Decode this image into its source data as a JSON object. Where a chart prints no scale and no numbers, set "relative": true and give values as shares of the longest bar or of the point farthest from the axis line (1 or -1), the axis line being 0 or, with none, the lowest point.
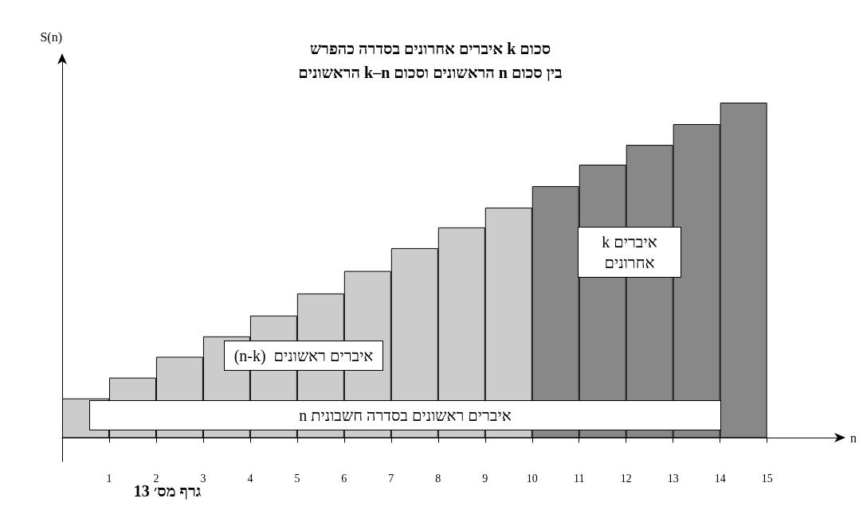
{
  "chart_data": {
    "type": "bar",
    "title": "סכום k איברים אחרונים בסדרה כהפרש",
    "subtitle": "בין סכום n הראשונים וסכום  k–n  הראשונים",
    "xlabel": "n",
    "ylabel": "S(n)",
    "x": [
      0.5,
      1.5,
      2.5,
      3.5,
      4.5,
      5.5,
      6.5,
      7.5,
      8.5,
      9.5,
      10.5,
      11.5,
      12.5,
      13.5,
      14.5
    ],
    "values": [
      0.118,
      0.18,
      0.242,
      0.303,
      0.365,
      0.431,
      0.498,
      0.566,
      0.628,
      0.687,
      0.751,
      0.815,
      0.874,
      0.936,
      1
    ],
    "colors": [
      "#cccccc",
      "#cccccc",
      "#cccccc",
      "#cccccc",
      "#cccccc",
      "#cccccc",
      "#cccccc",
      "#cccccc",
      "#cccccc",
      "#cccccc",
      "#888888",
      "#888888",
      "#888888",
      "#888888",
      "#888888"
    ],
    "relative": true,
    "xlim": [
      0,
      16.6
    ],
    "xticks": [
      1,
      2,
      3,
      4,
      5,
      6,
      7,
      8,
      9,
      10,
      11,
      12,
      13,
      14,
      15
    ],
    "grid": false,
    "annotations": [
      "n איברים ראשונים בסדרה חשבונית",
      "(n-k)  איברים ראשונים",
      "k איברים\nאחרונים",
      "גרף מס׳ 13"
    ]
  }
}
